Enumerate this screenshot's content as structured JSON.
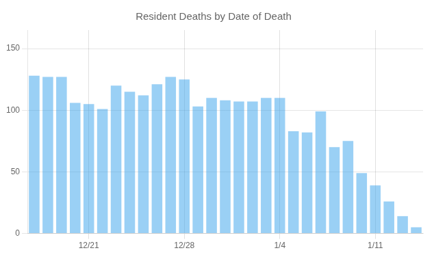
{
  "chart_data": {
    "type": "bar",
    "title": "Resident Deaths by Date of Death",
    "categories": [
      null,
      null,
      null,
      null,
      "12/21",
      null,
      null,
      null,
      null,
      null,
      null,
      "12/28",
      null,
      null,
      null,
      null,
      null,
      null,
      "1/4",
      null,
      null,
      null,
      null,
      null,
      null,
      "1/11",
      null,
      null,
      null
    ],
    "values": [
      128,
      127,
      127,
      106,
      105,
      101,
      120,
      115,
      112,
      121,
      127,
      125,
      103,
      110,
      108,
      107,
      107,
      110,
      110,
      83,
      82,
      99,
      70,
      75,
      49,
      39,
      26,
      14,
      5
    ],
    "ylim": [
      0,
      165
    ],
    "yticks": [
      0,
      50,
      100,
      150
    ],
    "grid": true
  }
}
